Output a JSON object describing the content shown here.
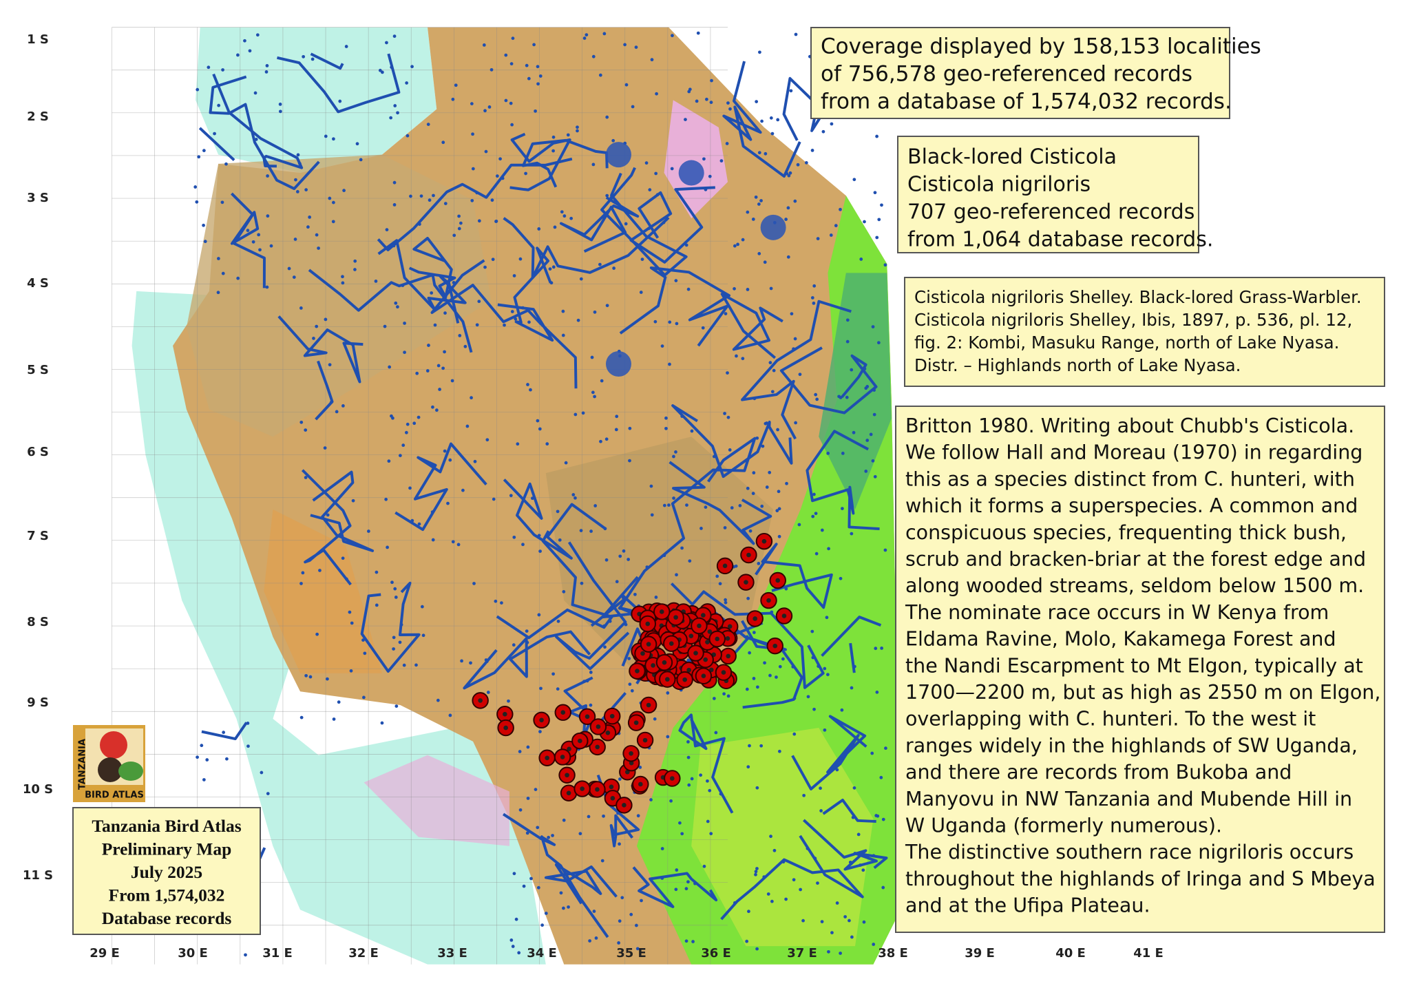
{
  "latitude_labels": [
    "1 S",
    "2 S",
    "3 S",
    "4 S",
    "5 S",
    "6 S",
    "7 S",
    "8 S",
    "9 S",
    "10 S",
    "11 S"
  ],
  "longitude_labels": [
    "29 E",
    "30 E",
    "31 E",
    "32 E",
    "33 E",
    "34 E",
    "35 E",
    "36 E",
    "37 E",
    "38 E",
    "39 E",
    "40 E",
    "41 E"
  ],
  "coverage_box": {
    "lines": [
      "Coverage displayed by 158,153 localities",
      "of 756,578 geo-referenced records",
      "from a database of 1,574,032 records."
    ]
  },
  "species_box": {
    "lines": [
      "Black-lored Cisticola",
      "Cisticola nigriloris",
      "707 geo-referenced records",
      "from 1,064 database records."
    ]
  },
  "citation_box": {
    "lines": [
      "Cisticola nigriloris Shelley. Black-lored Grass-Warbler.",
      "Cisticola nigriloris Shelley, Ibis, 1897, p. 536, pl. 12,",
      "fig. 2: Kombi, Masuku Range, north of Lake Nyasa.",
      "Distr. – Highlands north of Lake Nyasa."
    ]
  },
  "notes_box": {
    "lines": [
      "Britton 1980. Writing about Chubb's Cisticola.",
      "We follow Hall and Moreau (1970) in regarding",
      "this as a species distinct from C. hunteri, with",
      "which it forms a superspecies. A common and",
      "conspicuous species, frequenting thick bush,",
      "scrub and bracken-briar at the forest edge and",
      "along wooded streams, seldom below 1500 m.",
      "The nominate race occurs in W Kenya from",
      "Eldama Ravine, Molo, Kakamega Forest and",
      "the Nandi Escarpment to Mt Elgon, typically at",
      "1700—2200 m, but as high as 2550 m on Elgon,",
      "overlapping with C. hunteri. To the west it",
      "ranges widely in the highlands of SW Uganda,",
      "and there are records from Bukoba and",
      "Manyovu in NW Tanzania and Mubende Hill in",
      "W Uganda (formerly numerous).",
      "The distinctive southern race nigriloris occurs",
      "throughout the highlands of Iringa and S Mbeya",
      "and at the Ufipa Plateau."
    ]
  },
  "atlas_logo": {
    "lines": [
      "TANZANIA",
      "BIRD ATLAS"
    ]
  },
  "legend_box": {
    "lines": [
      "Tanzania Bird Atlas",
      "Preliminary Map",
      "July 2025",
      "From 1,574,032",
      "Database records"
    ]
  }
}
